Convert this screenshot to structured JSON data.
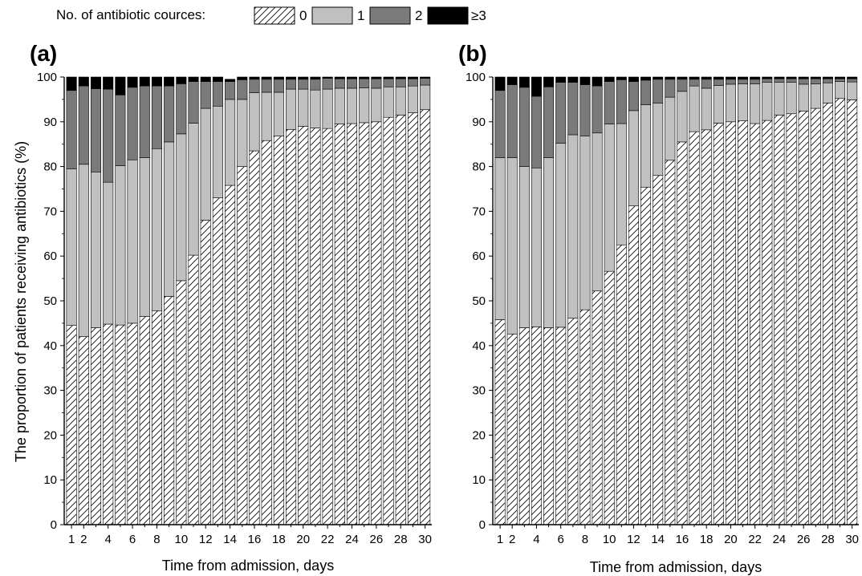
{
  "legend": {
    "title": "No. of antibiotic cources:",
    "items": [
      {
        "label": "0",
        "fill": "hatch"
      },
      {
        "label": "1",
        "fill": "#c0c0c0"
      },
      {
        "label": "2",
        "fill": "#7a7a7a"
      },
      {
        "label": "≥3",
        "fill": "#000000"
      }
    ]
  },
  "colors": {
    "c0": "#ffffff",
    "c1": "#c0c0c0",
    "c2": "#7a7a7a",
    "c3": "#000000",
    "axis": "#000000"
  },
  "chart_data": [
    {
      "type": "bar",
      "stacked": true,
      "panel_label": "(a)",
      "xlabel": "Time from admission, days",
      "ylabel": "The proportion of patients receiving antibiotics (%)",
      "ylim": [
        0,
        100
      ],
      "y_ticks": [
        0,
        10,
        20,
        30,
        40,
        50,
        60,
        70,
        80,
        90,
        100
      ],
      "x_tick_labels": [
        "1",
        "2",
        "4",
        "6",
        "8",
        "10",
        "12",
        "14",
        "16",
        "18",
        "20",
        "22",
        "24",
        "26",
        "28",
        "30"
      ],
      "categories": [
        1,
        2,
        3,
        4,
        5,
        6,
        7,
        8,
        9,
        10,
        11,
        12,
        13,
        14,
        15,
        16,
        17,
        18,
        19,
        20,
        21,
        22,
        23,
        24,
        25,
        26,
        27,
        28,
        29,
        30
      ],
      "series": [
        {
          "name": "0",
          "values": [
            44.5,
            42,
            44,
            44.8,
            44.6,
            45,
            46.5,
            47.8,
            51,
            54.5,
            60.2,
            68,
            73,
            75.8,
            80,
            83.5,
            85.8,
            86.8,
            88.3,
            89,
            88.6,
            88.5,
            89.5,
            89.6,
            89.8,
            90,
            91,
            91.5,
            92,
            92.7
          ]
        },
        {
          "name": "1",
          "values": [
            35,
            38.5,
            34.8,
            31.7,
            35.6,
            36.5,
            35.5,
            36.2,
            34.5,
            32.8,
            29.5,
            25,
            20.5,
            19.2,
            15,
            13,
            10.8,
            9.8,
            9,
            8.3,
            8.5,
            8.8,
            8,
            7.9,
            7.8,
            7.5,
            6.8,
            6.3,
            6,
            5.5
          ]
        },
        {
          "name": "2",
          "values": [
            17.5,
            17.5,
            18.6,
            20.8,
            15.8,
            16.2,
            16,
            14,
            12.5,
            11.2,
            9.3,
            6,
            5.5,
            4,
            4.4,
            3,
            2.9,
            2.9,
            2.2,
            2.2,
            2.4,
            2.4,
            2.1,
            2.1,
            2,
            2.1,
            1.8,
            1.8,
            1.6,
            1.5
          ]
        },
        {
          "name": "≥3",
          "values": [
            3,
            2,
            2.6,
            2.7,
            4,
            2.3,
            2,
            2,
            2,
            1.5,
            1,
            1,
            1,
            0.5,
            0.6,
            0.5,
            0.5,
            0.5,
            0.5,
            0.5,
            0.5,
            0.3,
            0.4,
            0.4,
            0.4,
            0.4,
            0.4,
            0.4,
            0.4,
            0.3
          ]
        }
      ]
    },
    {
      "type": "bar",
      "stacked": true,
      "panel_label": "(b)",
      "xlabel": "Time from admission, days",
      "ylabel": "",
      "ylim": [
        0,
        100
      ],
      "y_ticks": [
        0,
        10,
        20,
        30,
        40,
        50,
        60,
        70,
        80,
        90,
        100
      ],
      "x_tick_labels": [
        "1",
        "2",
        "4",
        "6",
        "8",
        "10",
        "12",
        "14",
        "16",
        "18",
        "20",
        "22",
        "24",
        "26",
        "28",
        "30"
      ],
      "categories": [
        1,
        2,
        3,
        4,
        5,
        6,
        7,
        8,
        9,
        10,
        11,
        12,
        13,
        14,
        15,
        16,
        17,
        18,
        19,
        20,
        21,
        22,
        23,
        24,
        25,
        26,
        27,
        28,
        29,
        30
      ],
      "series": [
        {
          "name": "0",
          "values": [
            45.8,
            42.6,
            44,
            44.2,
            44,
            44.1,
            46.1,
            48,
            52.2,
            56.6,
            62.5,
            71.2,
            75.4,
            78,
            81.4,
            85.5,
            87.8,
            88.2,
            89.7,
            90,
            90.2,
            89.6,
            90.3,
            91.5,
            91.8,
            92.4,
            93,
            94.2,
            95.2,
            94.9
          ]
        },
        {
          "name": "1",
          "values": [
            36.2,
            39.4,
            36,
            35.5,
            38,
            41.1,
            41,
            38.8,
            35.3,
            32.9,
            27.1,
            21.3,
            18.4,
            16.2,
            14.1,
            11.3,
            10.2,
            9.3,
            8.4,
            8.4,
            8.3,
            8.9,
            8.5,
            7.3,
            7,
            6,
            5.5,
            4.5,
            3.8,
            4
          ]
        },
        {
          "name": "2",
          "values": [
            15,
            16.3,
            17.7,
            16,
            15.8,
            13.6,
            11.7,
            11.5,
            10.5,
            9.5,
            9.8,
            6.5,
            5.5,
            5.3,
            4,
            2.7,
            1.5,
            2,
            1.4,
            1.1,
            1,
            1,
            0.8,
            0.8,
            0.8,
            1.2,
            1.1,
            0.9,
            0.6,
            0.7
          ]
        },
        {
          "name": "≥3",
          "values": [
            3,
            1.7,
            2.3,
            4.3,
            2.2,
            1.2,
            1.2,
            1.7,
            2,
            1,
            0.6,
            1,
            0.7,
            0.5,
            0.5,
            0.5,
            0.5,
            0.5,
            0.5,
            0.5,
            0.5,
            0.5,
            0.4,
            0.4,
            0.4,
            0.4,
            0.4,
            0.4,
            0.4,
            0.4
          ]
        }
      ]
    }
  ]
}
